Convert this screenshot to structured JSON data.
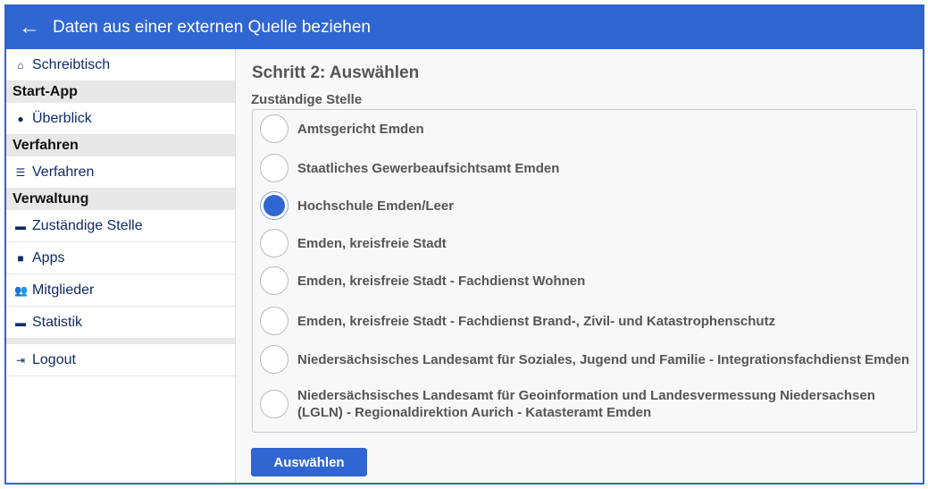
{
  "header": {
    "title": "Daten aus einer externen Quelle beziehen",
    "back_icon": "arrow-left-icon"
  },
  "sidebar": {
    "desk": "Schreibtisch",
    "sec1": "Start-App",
    "overview": "Überblick",
    "sec2": "Verfahren",
    "procedures": "Verfahren",
    "sec3": "Verwaltung",
    "office": "Zuständige Stelle",
    "apps": "Apps",
    "members": "Mitglieder",
    "stats": "Statistik",
    "logout": "Logout"
  },
  "main": {
    "title": "Schritt 2: Auswählen",
    "field_label": "Zuständige Stelle",
    "options": [
      {
        "label": "Amtsgericht Emden",
        "selected": false
      },
      {
        "label": "Staatliches Gewerbeaufsichtsamt Emden",
        "selected": false
      },
      {
        "label": "Hochschule Emden/Leer",
        "selected": true
      },
      {
        "label": "Emden, kreisfreie Stadt",
        "selected": false
      },
      {
        "label": "Emden, kreisfreie Stadt - Fachdienst Wohnen",
        "selected": false
      },
      {
        "label": "Emden, kreisfreie Stadt - Fachdienst Brand-, Zivil- und Katastrophenschutz",
        "selected": false
      },
      {
        "label": "Niedersächsisches Landesamt für Soziales, Jugend und Familie - Integrationsfachdienst Emden",
        "selected": false
      },
      {
        "label": "Niedersächsisches Landesamt für Geoinformation und Landesvermessung Niedersachsen (LGLN) - Regionaldirektion Aurich - Katasteramt Emden",
        "selected": false
      }
    ],
    "submit": "Auswählen"
  },
  "colors": {
    "accent": "#3066d1"
  }
}
